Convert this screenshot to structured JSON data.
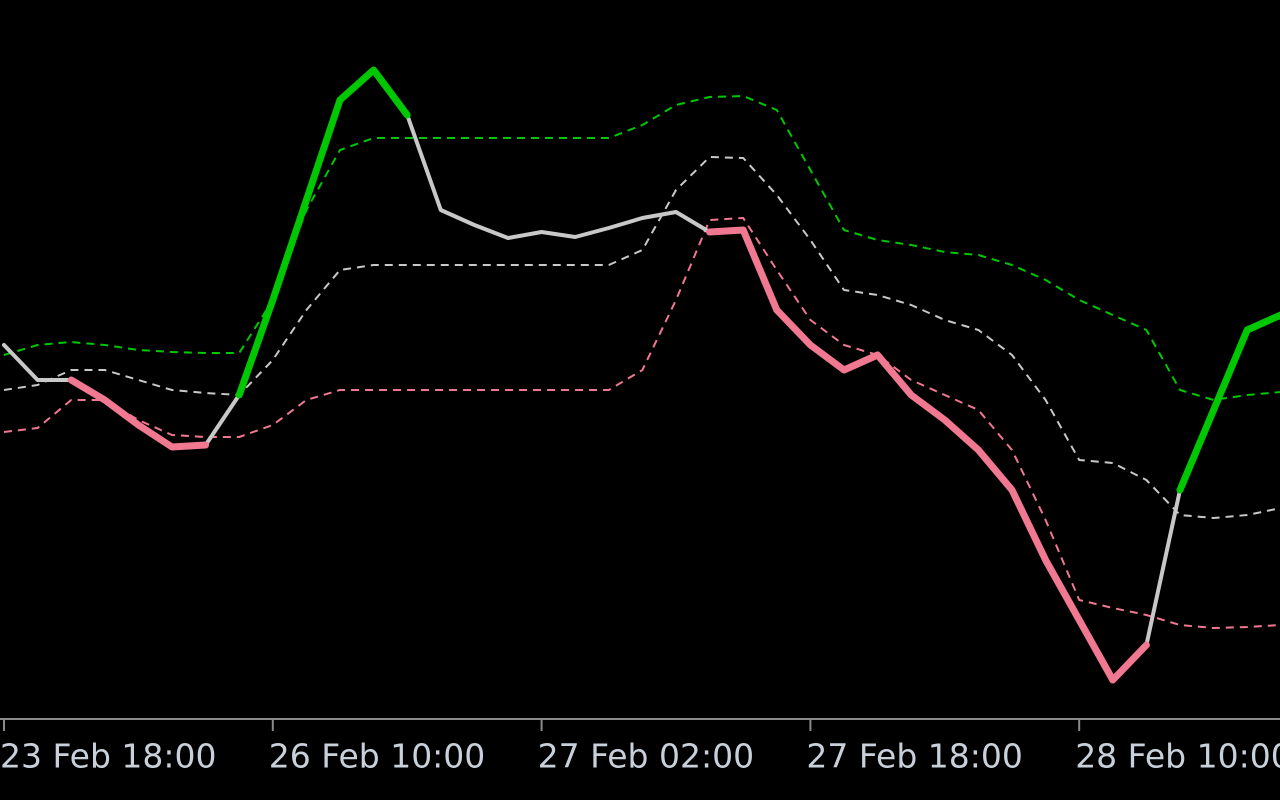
{
  "chart_data": {
    "type": "line",
    "categories": [
      "23 Feb 18:00",
      null,
      null,
      null,
      null,
      null,
      null,
      null,
      "26 Feb 10:00",
      null,
      null,
      null,
      null,
      null,
      null,
      null,
      "27 Feb 02:00",
      null,
      null,
      null,
      null,
      null,
      null,
      null,
      "27 Feb 18:00",
      null,
      null,
      null,
      null,
      null,
      null,
      null,
      "28 Feb 10:00",
      null,
      null,
      null,
      null,
      null,
      null
    ],
    "ylim": [
      0,
      720
    ],
    "series": [
      {
        "color": "#00c800",
        "dashed": true,
        "width": 2,
        "values": [
          365,
          375,
          378,
          375,
          370,
          368,
          367,
          367,
          420,
          510,
          570,
          582,
          582,
          582,
          582,
          582,
          582,
          582,
          582,
          595,
          615,
          623,
          624,
          610,
          550,
          490,
          480,
          475,
          468,
          465,
          455,
          440,
          420,
          405,
          390,
          330,
          320,
          325,
          328
        ]
      },
      {
        "color": "#c8c8c8",
        "dashed": true,
        "width": 2,
        "values": [
          330,
          335,
          350,
          350,
          340,
          330,
          327,
          325,
          360,
          410,
          450,
          455,
          455,
          455,
          455,
          455,
          455,
          455,
          455,
          470,
          530,
          563,
          562,
          525,
          480,
          430,
          425,
          415,
          400,
          390,
          365,
          320,
          260,
          257,
          240,
          205,
          202,
          205,
          212
        ]
      },
      {
        "color": "#f07890",
        "dashed": true,
        "width": 2,
        "values": [
          288,
          292,
          320,
          320,
          300,
          285,
          283,
          283,
          295,
          320,
          330,
          330,
          330,
          330,
          330,
          330,
          330,
          330,
          330,
          350,
          420,
          500,
          502,
          450,
          400,
          375,
          365,
          340,
          325,
          310,
          270,
          200,
          120,
          112,
          105,
          95,
          92,
          93,
          95
        ]
      },
      {
        "color": "#c8c8c8",
        "dashed": false,
        "width": 4,
        "values": [
          375,
          340,
          340,
          null,
          null,
          null,
          275,
          325,
          null,
          null,
          null,
          null,
          605,
          510,
          495,
          482,
          488,
          483,
          492,
          502,
          508,
          488,
          null,
          null,
          null,
          null,
          null,
          null,
          null,
          null,
          null,
          null,
          null,
          null,
          75,
          230,
          null,
          null,
          null
        ]
      },
      {
        "color": "#f07890",
        "dashed": false,
        "width": 7,
        "values": [
          null,
          null,
          340,
          320,
          295,
          273,
          275,
          null,
          null,
          null,
          null,
          null,
          null,
          null,
          null,
          null,
          null,
          null,
          null,
          null,
          null,
          488,
          490,
          410,
          375,
          350,
          365,
          325,
          300,
          270,
          230,
          160,
          100,
          40,
          75,
          null,
          null,
          null,
          null
        ]
      },
      {
        "color": "#00c800",
        "dashed": false,
        "width": 7,
        "values": [
          null,
          null,
          null,
          null,
          null,
          null,
          null,
          325,
          420,
          520,
          620,
          650,
          605,
          null,
          null,
          null,
          null,
          null,
          null,
          null,
          null,
          null,
          null,
          null,
          null,
          null,
          null,
          null,
          null,
          null,
          null,
          null,
          null,
          null,
          null,
          230,
          310,
          390,
          405
        ]
      }
    ]
  }
}
